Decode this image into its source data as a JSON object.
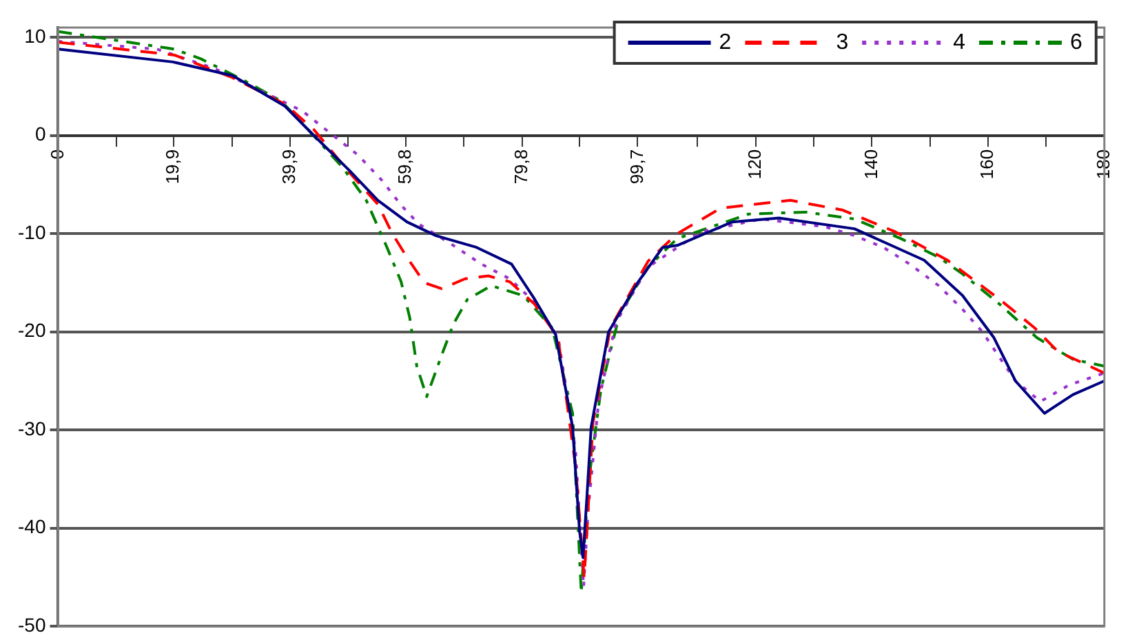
{
  "chart_data": {
    "type": "line",
    "xlim": [
      0,
      180
    ],
    "ylim": [
      -50,
      11
    ],
    "xticks": [
      0,
      {
        "value": 9.97,
        "label": null
      },
      {
        "value": 19.9,
        "label": "19,9"
      },
      {
        "value": 29.9,
        "label": null
      },
      {
        "value": 39.9,
        "label": "39,9"
      },
      {
        "value": 49.8,
        "label": null
      },
      {
        "value": 59.8,
        "label": "59,8"
      },
      {
        "value": 69.8,
        "label": null
      },
      {
        "value": 79.8,
        "label": "79,8"
      },
      {
        "value": 89.7,
        "label": null
      },
      {
        "value": 99.7,
        "label": "99,7"
      },
      {
        "value": 110,
        "label": null
      },
      120,
      {
        "value": 130,
        "label": null
      },
      140,
      {
        "value": 150,
        "label": null
      },
      160,
      {
        "value": 170,
        "label": null
      },
      180
    ],
    "yticks": [
      -50,
      -40,
      -30,
      -20,
      -10,
      0,
      10
    ],
    "grid": "y",
    "legend": "top right",
    "marker": "none",
    "series": [
      {
        "name": "2",
        "color": "#000080",
        "line_style": "solid",
        "x": [
          0,
          19.7,
          30,
          39,
          44,
          50,
          55,
          60,
          65,
          72,
          78,
          82,
          85.6,
          88.5,
          89.7,
          90.3,
          91,
          91.7,
          94.7,
          99.8,
          104,
          106.5,
          116,
          124,
          137,
          149,
          155.6,
          161,
          164.7,
          169.7,
          174.6,
          180
        ],
        "values": [
          8.8,
          7.5,
          6.1,
          3,
          0,
          -3.5,
          -6.6,
          -8.8,
          -10.2,
          -11.4,
          -13.1,
          -16.7,
          -20.3,
          -29.7,
          -40.3,
          -43,
          -36.5,
          -29.7,
          -20,
          -14.9,
          -11.4,
          -11.2,
          -8.8,
          -8.4,
          -9.5,
          -12.7,
          -16.3,
          -20.6,
          -25,
          -28.3,
          -26.4,
          -25
        ]
      },
      {
        "name": "3",
        "color": "#ff0000",
        "line_style": "dashed",
        "x": [
          0,
          20,
          30,
          39,
          44,
          50,
          55,
          57.5,
          60,
          63,
          66,
          70,
          74,
          77.7,
          82,
          86,
          89,
          90.5,
          91,
          92,
          95,
          101.5,
          106.5,
          114,
          126,
          135,
          144,
          153,
          162,
          168,
          172,
          180
        ],
        "values": [
          9.5,
          8.2,
          5.9,
          3.2,
          0.6,
          -3.7,
          -7,
          -10,
          -12.4,
          -15,
          -15.6,
          -14.6,
          -14.3,
          -14.9,
          -17.2,
          -20.6,
          -33.6,
          -45,
          -40,
          -29.3,
          -19.6,
          -12.8,
          -10,
          -7.4,
          -6.6,
          -7.6,
          -9.8,
          -12.7,
          -16.7,
          -19.6,
          -22,
          -24.2
        ]
      },
      {
        "name": "4",
        "color": "#9933cc",
        "line_style": "dotted",
        "x": [
          0,
          17,
          27,
          42,
          46.7,
          51.6,
          55.6,
          59,
          62,
          68,
          72.8,
          77.7,
          82,
          86,
          89,
          90.4,
          91.2,
          93,
          96,
          101.5,
          110.6,
          121,
          132,
          137,
          142,
          146.5,
          151.5,
          155.6,
          159,
          164.7,
          169,
          174,
          180
        ],
        "values": [
          9.6,
          8.8,
          6.8,
          2.5,
          0.3,
          -2,
          -4.5,
          -7.1,
          -9,
          -11.2,
          -13.1,
          -14.6,
          -17,
          -20.5,
          -32,
          -46,
          -38,
          -27,
          -19,
          -13.4,
          -9.8,
          -8.5,
          -9.3,
          -10.2,
          -11.4,
          -13.1,
          -15.3,
          -17.7,
          -20,
          -25,
          -27.1,
          -25.4,
          -24.2
        ]
      },
      {
        "name": "6",
        "color": "#008000",
        "line_style": "dashdot",
        "x": [
          0,
          20,
          24.6,
          32,
          38.4,
          43,
          49,
          53,
          56.5,
          59,
          60.5,
          61.7,
          63.4,
          65.9,
          68,
          70.4,
          74.5,
          80,
          85,
          88.5,
          90,
          91.2,
          93.4,
          96.6,
          101.5,
          106.5,
          118.8,
          128.6,
          137,
          145,
          151.5,
          155.6,
          162,
          168.4,
          174.6,
          180
        ],
        "values": [
          10.6,
          8.8,
          7.8,
          5.6,
          3.5,
          0.6,
          -3.3,
          -6.6,
          -11.3,
          -14.9,
          -18.6,
          -23.5,
          -26.6,
          -22.5,
          -19.2,
          -16.7,
          -15.3,
          -16.3,
          -19.6,
          -28.3,
          -46.6,
          -35.5,
          -25.8,
          -18.2,
          -13.4,
          -10.5,
          -8,
          -7.8,
          -8.5,
          -10.5,
          -12.4,
          -14.1,
          -17.2,
          -20.6,
          -22.8,
          -23.5
        ]
      }
    ]
  }
}
